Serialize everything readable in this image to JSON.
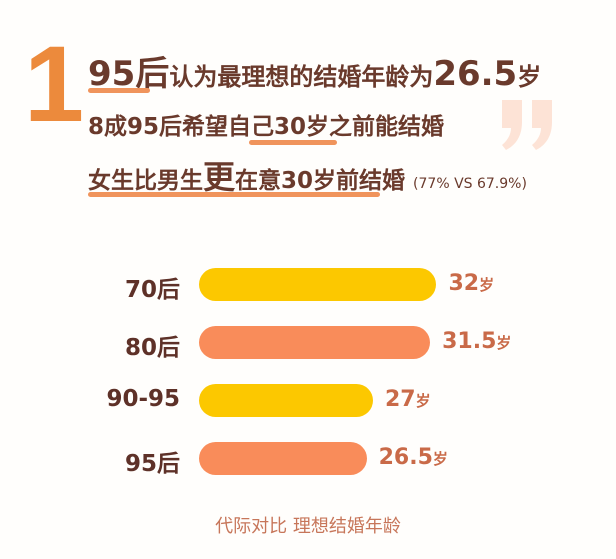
{
  "headline": {
    "number": "1",
    "line1": {
      "em1": "95后",
      "mid": "认为最理想的结婚年龄为",
      "em2": "26.5",
      "unit": "岁"
    },
    "line2": {
      "pre": "8成95后希望自己",
      "em": "30岁之前",
      "post": "能结婚"
    },
    "line3": {
      "pre": "女生比男生",
      "em": "更",
      "post": "在意30岁前结婚",
      "note": "(77% VS 67.9%)"
    },
    "quote_mark": "”"
  },
  "colors": {
    "dark": "#6a3a2c",
    "orange": "#ec8a3c",
    "yellow": "#fcc800",
    "salmon": "#f98c5a",
    "value": "#c96a48"
  },
  "chart_data": {
    "type": "bar",
    "orientation": "horizontal",
    "categories": [
      "70后",
      "80后",
      "90-95",
      "95后"
    ],
    "values": [
      32,
      31.5,
      27,
      26.5
    ],
    "value_labels": [
      "32",
      "31.5",
      "27",
      "26.5"
    ],
    "unit": "岁",
    "bar_colors": [
      "#fcc800",
      "#f98c5a",
      "#fcc800",
      "#f98c5a"
    ],
    "caption": "代际对比  理想结婚年龄",
    "grid": false
  }
}
